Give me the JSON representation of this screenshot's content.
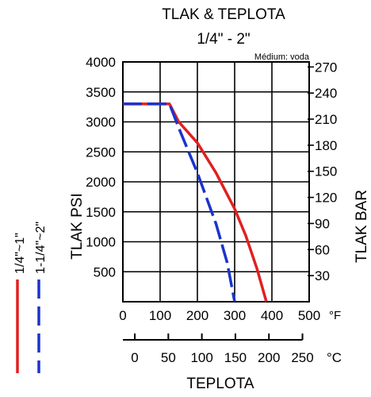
{
  "chart_data": {
    "type": "line",
    "title": "TLAK & TEPLOTA",
    "subtitle": "1/4\" - 2\"",
    "note": "Médium: voda",
    "ylabel_left": "TLAK PSI",
    "ylabel_right": "TLAK BAR",
    "xlabel": "TEPLOTA",
    "x_unit_f": "°F",
    "x_unit_c": "°C",
    "xlim_f": [
      0,
      500
    ],
    "ylim_psi": [
      0,
      4000
    ],
    "x_ticks_f": [
      "0",
      "100",
      "200",
      "300",
      "400",
      "500"
    ],
    "y_ticks_psi": [
      "500",
      "1000",
      "1500",
      "2000",
      "2500",
      "3000",
      "3500",
      "4000"
    ],
    "y_ticks_bar": [
      "30",
      "60",
      "90",
      "120",
      "150",
      "180",
      "210",
      "240",
      "270"
    ],
    "x_ticks_c": [
      "0",
      "50",
      "100",
      "150",
      "200",
      "250"
    ],
    "series": [
      {
        "name": "1/4\"~1\"",
        "color": "#e02020",
        "dash": "solid",
        "x": [
          0,
          125,
          150,
          200,
          250,
          300,
          330,
          360,
          385
        ],
        "y": [
          3300,
          3300,
          3000,
          2650,
          2150,
          1550,
          1100,
          550,
          0
        ]
      },
      {
        "name": "1-1/4\"~2\"",
        "color": "#1b33cc",
        "dash": "dashed",
        "x": [
          0,
          125,
          150,
          200,
          250,
          280,
          300
        ],
        "y": [
          3300,
          3300,
          2900,
          2150,
          1300,
          650,
          0
        ]
      }
    ]
  }
}
